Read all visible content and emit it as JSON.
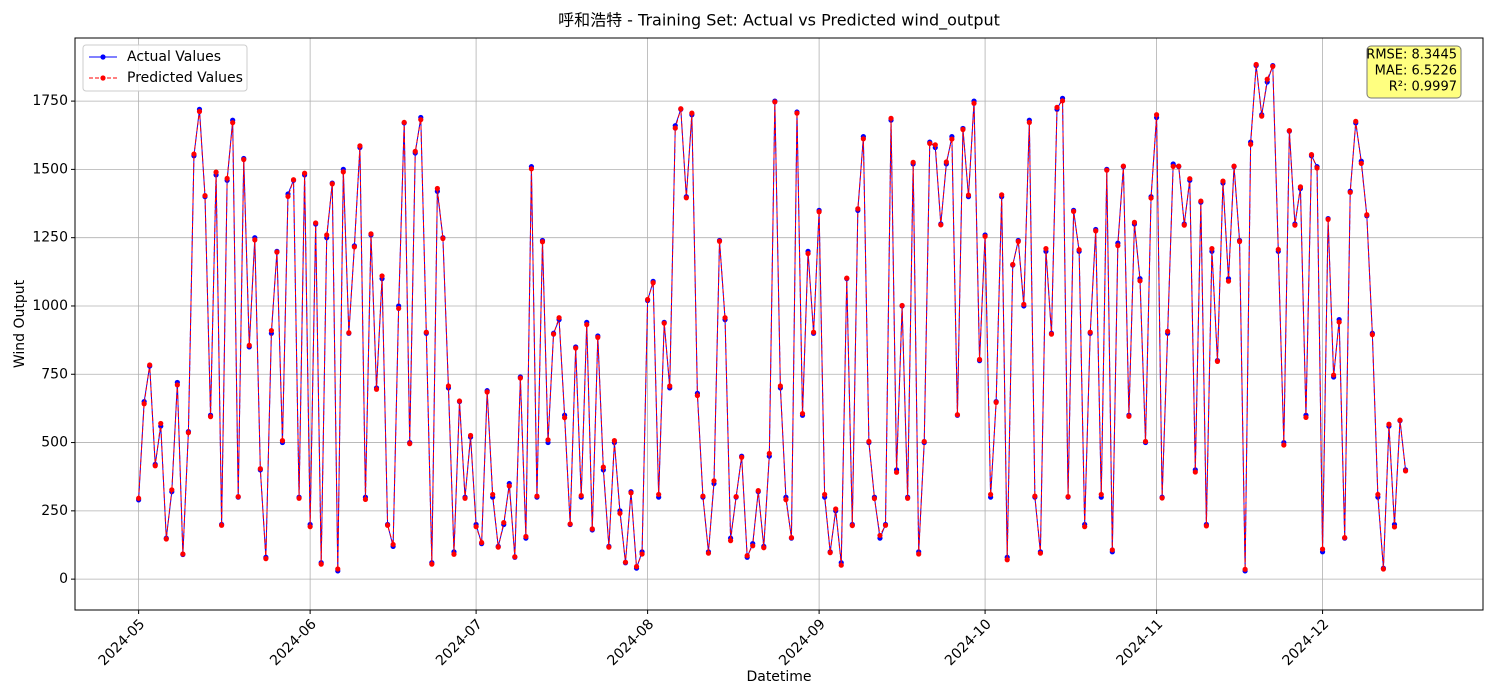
{
  "chart_data": {
    "type": "line",
    "title": "呼和浩特 - Training Set: Actual vs Predicted wind_output",
    "x_label": "Datetime",
    "y_label": "Wind Output",
    "x": [
      0,
      1,
      2,
      3,
      4,
      5,
      6,
      7,
      8,
      9,
      10,
      11,
      12,
      13,
      14,
      15,
      16,
      17,
      18,
      19,
      20,
      21,
      22,
      23,
      24,
      25,
      26,
      27,
      28,
      29,
      30,
      31,
      32,
      33,
      34,
      35,
      36,
      37,
      38,
      39,
      40,
      41,
      42,
      43,
      44,
      45,
      46,
      47,
      48,
      49,
      50,
      51,
      52,
      53,
      54,
      55,
      56,
      57,
      58,
      59,
      60,
      61,
      62,
      63,
      64,
      65,
      66,
      67,
      68,
      69,
      70,
      71,
      72,
      73,
      74,
      75,
      76,
      77,
      78,
      79,
      80,
      81,
      82,
      83,
      84,
      85,
      86,
      87,
      88,
      89,
      90,
      91,
      92,
      93,
      94,
      95,
      96,
      97,
      98,
      99,
      100,
      101,
      102,
      103,
      104,
      105,
      106,
      107,
      108,
      109,
      110,
      111,
      112,
      113,
      114,
      115,
      116,
      117,
      118,
      119,
      120,
      121,
      122,
      123,
      124,
      125,
      126,
      127,
      128,
      129,
      130,
      131,
      132,
      133,
      134,
      135,
      136,
      137,
      138,
      139,
      140,
      141,
      142,
      143,
      144,
      145,
      146,
      147,
      148,
      149,
      150,
      151,
      152,
      153,
      154,
      155,
      156,
      157,
      158,
      159,
      160,
      161,
      162,
      163,
      164,
      165,
      166,
      167,
      168,
      169,
      170,
      171,
      172,
      173,
      174,
      175,
      176,
      177,
      178,
      179,
      180,
      181,
      182,
      183,
      184,
      185,
      186,
      187,
      188,
      189,
      190,
      191,
      192,
      193,
      194,
      195,
      196,
      197,
      198,
      199,
      200,
      201,
      202,
      203,
      204,
      205,
      206,
      207,
      208,
      209,
      210,
      211,
      212,
      213,
      214,
      215,
      216,
      217,
      218,
      219,
      220,
      221,
      222,
      223,
      224,
      225,
      226,
      227,
      228,
      229
    ],
    "series": [
      {
        "name": "Actual Values",
        "color": "#0000ff",
        "dashed": false,
        "values": [
          290,
          650,
          780,
          420,
          560,
          150,
          320,
          720,
          90,
          540,
          1550,
          1720,
          1400,
          600,
          1480,
          200,
          1460,
          1680,
          300,
          1540,
          850,
          1250,
          400,
          80,
          900,
          1200,
          500,
          1410,
          1460,
          300,
          1480,
          200,
          1300,
          60,
          1250,
          1450,
          30,
          1500,
          900,
          1220,
          1580,
          300,
          1260,
          700,
          1100,
          200,
          120,
          1000,
          1670,
          500,
          1560,
          1690,
          900,
          60,
          1420,
          1250,
          700,
          100,
          650,
          300,
          520,
          200,
          130,
          690,
          300,
          120,
          200,
          350,
          80,
          740,
          150,
          1510,
          300,
          1240,
          500,
          900,
          950,
          600,
          200,
          850,
          300,
          940,
          180,
          890,
          400,
          120,
          500,
          250,
          60,
          320,
          40,
          100,
          1020,
          1090,
          300,
          940,
          700,
          1660,
          1720,
          1400,
          1700,
          680,
          300,
          100,
          350,
          1240,
          950,
          150,
          300,
          450,
          80,
          130,
          320,
          120,
          450,
          1750,
          700,
          300,
          150,
          1710,
          600,
          1200,
          900,
          1350,
          300,
          100,
          250,
          60,
          1100,
          200,
          1350,
          1620,
          500,
          300,
          150,
          200,
          1680,
          400,
          1000,
          300,
          1520,
          100,
          500,
          1600,
          1580,
          1300,
          1520,
          1620,
          600,
          1650,
          1400,
          1750,
          800,
          1260,
          300,
          650,
          1400,
          80,
          1150,
          1240,
          1000,
          1680,
          300,
          100,
          1200,
          900,
          1720,
          1760,
          300,
          1350,
          1200,
          200,
          900,
          1280,
          300,
          1500,
          100,
          1230,
          1510,
          600,
          1300,
          1100,
          500,
          1400,
          1690,
          300,
          900,
          1520,
          1510,
          1300,
          1460,
          400,
          1380,
          200,
          1200,
          800,
          1450,
          1100,
          1510,
          1240,
          30,
          1600,
          1880,
          1700,
          1820,
          1880,
          1200,
          500,
          1640,
          1300,
          1430,
          600,
          1550,
          1510,
          100,
          1320,
          740,
          950,
          150,
          1420,
          1670,
          1530,
          1330,
          900,
          300,
          40,
          560,
          200,
          580,
          400
        ]
      },
      {
        "name": "Predicted Values",
        "color": "#ff0000",
        "dashed": true,
        "values": [
          296,
          642,
          784,
          415,
          570,
          147,
          327,
          711,
          92,
          536,
          1556,
          1712,
          1404,
          595,
          1490,
          197,
          1467,
          1671,
          302,
          1536,
          856,
          1242,
          404,
          75,
          910,
          1197,
          507,
          1401,
          1462,
          296,
          1486,
          192,
          1304,
          55,
          1260,
          1447,
          37,
          1491,
          902,
          1216,
          1586,
          292,
          1264,
          695,
          1110,
          197,
          127,
          991,
          1672,
          496,
          1566,
          1682,
          904,
          55,
          1430,
          1247,
          707,
          91,
          652,
          296,
          526,
          192,
          134,
          685,
          310,
          117,
          207,
          341,
          82,
          736,
          156,
          1502,
          304,
          1235,
          510,
          897,
          957,
          591,
          202,
          846,
          306,
          932,
          184,
          885,
          410,
          117,
          507,
          241,
          62,
          316,
          46,
          92,
          1024,
          1085,
          310,
          937,
          707,
          1651,
          1722,
          1396,
          1706,
          672,
          304,
          95,
          360,
          1237,
          957,
          141,
          302,
          446,
          86,
          122,
          324,
          115,
          460,
          1747,
          707,
          291,
          152,
          1706,
          606,
          1192,
          904,
          1345,
          310,
          97,
          257,
          51,
          1102,
          196,
          1356,
          1612,
          504,
          295,
          160,
          197,
          1687,
          391,
          1002,
          296,
          1526,
          92,
          504,
          1595,
          1590,
          1297,
          1527,
          1611,
          602,
          1646,
          1406,
          1742,
          804,
          1255,
          310,
          647,
          1407,
          71,
          1152,
          1236,
          1006,
          1672,
          304,
          95,
          1210,
          897,
          1727,
          1751,
          302,
          1346,
          1206,
          192,
          904,
          1275,
          310,
          1497,
          107,
          1221,
          1512,
          596,
          1306,
          1092,
          504,
          1395,
          1700,
          297,
          907,
          1511,
          1512,
          1296,
          1466,
          392,
          1384,
          195,
          1210,
          797,
          1457,
          1091,
          1512,
          1236,
          36,
          1592,
          1884,
          1695,
          1830,
          1877,
          1207,
          491,
          1642,
          1296,
          1436,
          592,
          1554,
          1505,
          110,
          1317,
          747,
          941,
          152,
          1416,
          1676,
          1522,
          1334,
          895,
          310,
          37,
          567,
          191,
          582,
          396
        ]
      }
    ],
    "xlim": [
      -11.5,
      243
    ],
    "xticks": [
      {
        "value": 0,
        "label": "2024-05"
      },
      {
        "value": 31,
        "label": "2024-06"
      },
      {
        "value": 61,
        "label": "2024-07"
      },
      {
        "value": 92,
        "label": "2024-08"
      },
      {
        "value": 123,
        "label": "2024-09"
      },
      {
        "value": 153,
        "label": "2024-10"
      },
      {
        "value": 184,
        "label": "2024-11"
      },
      {
        "value": 214,
        "label": "2024-12"
      }
    ],
    "ylim": [
      -113,
      1981
    ],
    "yticks": [
      0,
      250,
      500,
      750,
      1000,
      1250,
      1500,
      1750
    ],
    "grid": true,
    "legend": "upper left",
    "annotation": [
      "RMSE: 8.3445",
      "MAE: 6.5226",
      "R²: 0.9997"
    ]
  }
}
